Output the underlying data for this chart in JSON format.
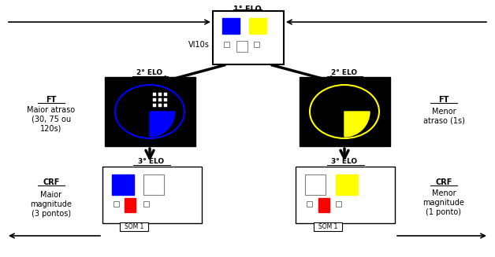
{
  "title": "1° ELO",
  "elo2_left_label": "2° ELO",
  "elo2_right_label": "2° ELO",
  "elo3_left_label": "3° ELO",
  "elo3_right_label": "3° ELO",
  "vi_label": "VI10s",
  "ft_left_title": "FT",
  "ft_left_text": "Maior atraso\n(30, 75 ou\n120s)",
  "ft_right_title": "FT",
  "ft_right_text": "Menor\natraso (1s)",
  "crf_left_title": "CRF",
  "crf_left_text": "Maior\nmagnitude\n(3 pontos)",
  "crf_right_title": "CRF",
  "crf_right_text": "Menor\nmagnitude\n(1 ponto)",
  "som_label": "SOM 1",
  "blue": "#0000FF",
  "yellow": "#FFFF00",
  "red": "#FF0000",
  "black": "#000000",
  "white": "#FFFFFF",
  "bg": "#FFFFFF"
}
